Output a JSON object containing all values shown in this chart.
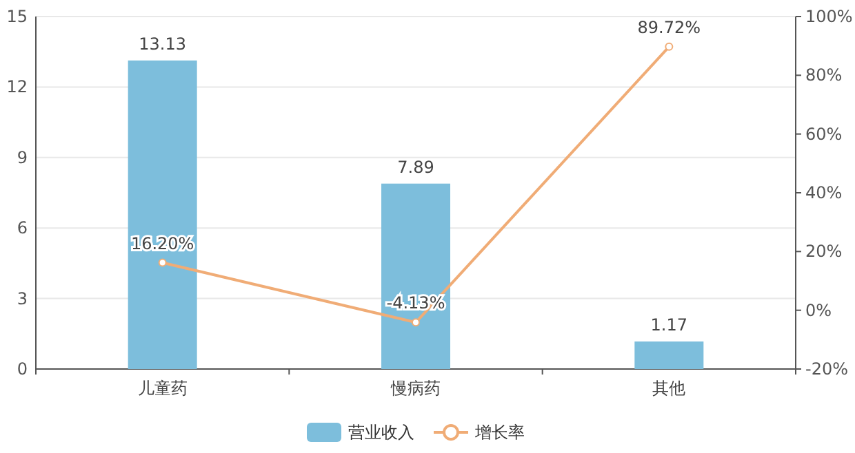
{
  "chart_data": {
    "type": "bar",
    "categories": [
      "儿童药",
      "慢病药",
      "其他"
    ],
    "series": [
      {
        "name": "营业收入",
        "color": "#7dbedc",
        "values": [
          13.13,
          7.89,
          1.17
        ],
        "value_labels": [
          "13.13",
          "7.89",
          "1.17"
        ]
      },
      {
        "name": "增长率",
        "type": "line",
        "axis": "y2",
        "color": "#f0ac76",
        "marker": "circle",
        "values": [
          16.2,
          -4.13,
          89.72
        ],
        "value_labels": [
          "16.20%",
          "-4.13%",
          "89.72%"
        ]
      }
    ],
    "ylim": [
      0,
      15
    ],
    "yticks": [
      0,
      3,
      6,
      9,
      12,
      15
    ],
    "y2lim": [
      -20,
      100
    ],
    "y2ticks": [
      {
        "value": -20,
        "label": "-20%"
      },
      {
        "value": 0,
        "label": "0%"
      },
      {
        "value": 20,
        "label": "20%"
      },
      {
        "value": 40,
        "label": "40%"
      },
      {
        "value": 60,
        "label": "60%"
      },
      {
        "value": 80,
        "label": "80%"
      },
      {
        "value": 100,
        "label": "100%"
      }
    ],
    "grid": "y",
    "legend": "bottom"
  }
}
